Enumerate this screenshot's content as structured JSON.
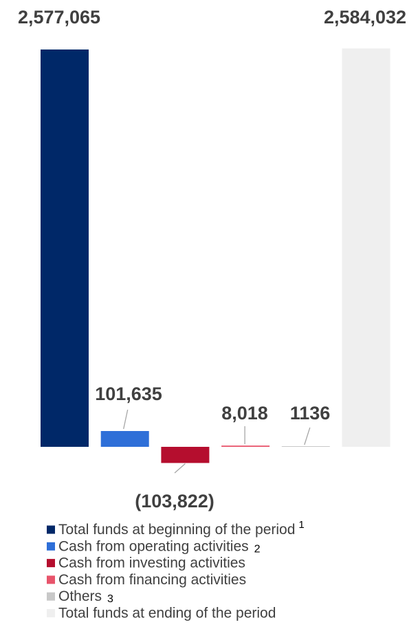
{
  "chart_data": {
    "type": "bar",
    "subtype": "waterfall",
    "categories": [
      "Total funds at beginning of the period",
      "Cash from operating activities",
      "Cash from investing activities",
      "Cash from financing activities",
      "Others",
      "Total funds at ending of the period"
    ],
    "values": [
      2577065,
      101635,
      -103822,
      8018,
      1136,
      2584032
    ],
    "value_labels": [
      "2,577,065",
      "101,635",
      "(103,822)",
      "8,018",
      "1136",
      "2,584,032"
    ],
    "colors": [
      "#002868",
      "#2e6fd8",
      "#b50e2e",
      "#e8546b",
      "#c8c8c8",
      "#efefef"
    ],
    "footnotes": [
      "1",
      "2",
      "",
      "",
      "3",
      ""
    ],
    "legend": [
      {
        "label": "Total funds at beginning of the period",
        "color": "#002868",
        "footnote": "1"
      },
      {
        "label": "Cash from operating activities",
        "color": "#2e6fd8",
        "footnote": "2"
      },
      {
        "label": "Cash from investing activities",
        "color": "#b50e2e",
        "footnote": ""
      },
      {
        "label": "Cash from financing activities",
        "color": "#e8546b",
        "footnote": ""
      },
      {
        "label": "Others",
        "color": "#c8c8c8",
        "footnote": "3"
      },
      {
        "label": "Total funds at ending of the period",
        "color": "#efefef",
        "footnote": ""
      }
    ],
    "legend_position": "bottom",
    "grid": false,
    "axes_visible": false,
    "label_color": "#404040"
  }
}
